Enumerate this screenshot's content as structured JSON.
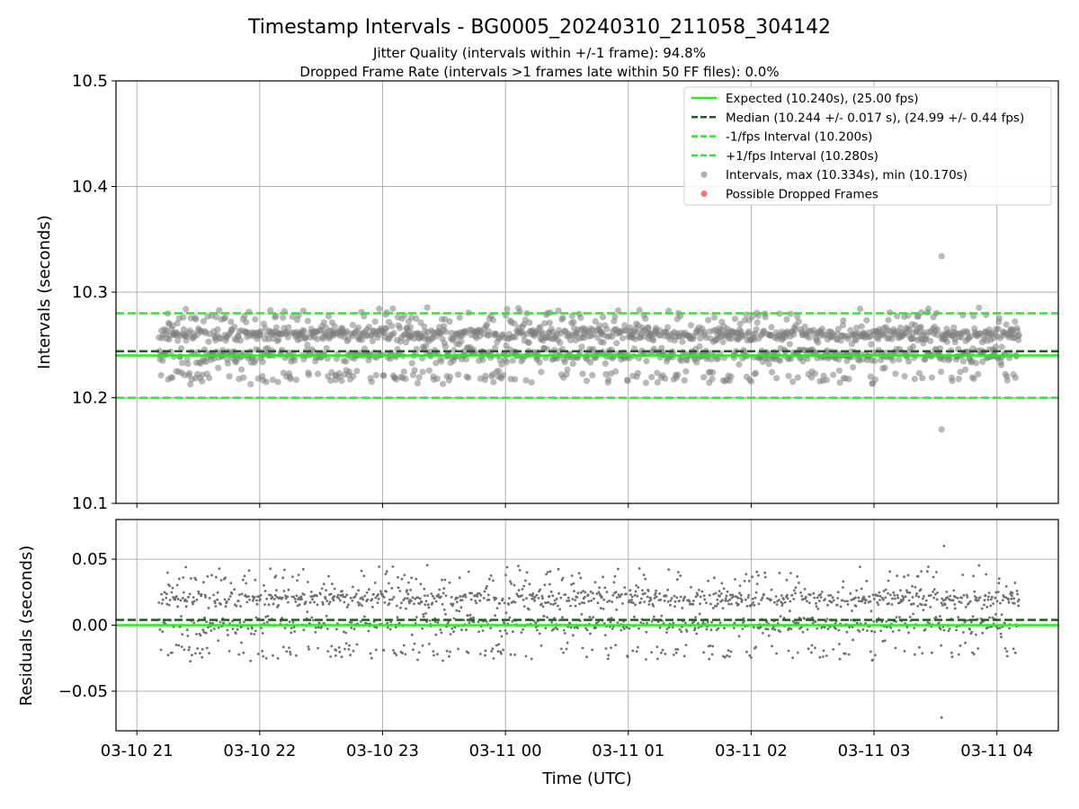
{
  "chart_data": [
    {
      "type": "scatter",
      "title": "Timestamp Intervals - BG0005_20240310_211058_304142",
      "subtitle_lines": [
        "Jitter Quality (intervals within +/-1 frame): 94.8%",
        "Dropped Frame Rate (intervals >1 frames late within 50 FF files): 0.0%"
      ],
      "ylabel": "Intervals (seconds)",
      "ylim": [
        10.1,
        10.5
      ],
      "yticks": [
        10.1,
        10.2,
        10.3,
        10.4,
        10.5
      ],
      "ytick_labels": [
        "10.1",
        "10.2",
        "10.3",
        "10.4",
        "10.5"
      ],
      "grid": true,
      "legend_position": "top-right",
      "legend": [
        {
          "label": "Expected (10.240s), (25.00 fps)",
          "kind": "solid",
          "color": "#22ee22"
        },
        {
          "label": "Median (10.244 +/- 0.017 s), (24.99 +/- 0.44 fps)",
          "kind": "dash",
          "color": "#116611"
        },
        {
          "label": "-1/fps Interval (10.200s)",
          "kind": "dash",
          "color": "#22ee22"
        },
        {
          "label": "+1/fps Interval (10.280s)",
          "kind": "dash",
          "color": "#22ee22"
        },
        {
          "label": "Intervals, max (10.334s), min (10.170s)",
          "kind": "dot",
          "color": "#9a9a9a"
        },
        {
          "label": "Possible Dropped Frames",
          "kind": "dot",
          "color": "#ee5555"
        }
      ],
      "reference_lines": {
        "expected": 10.24,
        "median": 10.244,
        "minus_1fps": 10.2,
        "plus_1fps": 10.28
      },
      "points_summary": {
        "count_approx": 2460,
        "time_start_hours": 21.18,
        "time_end_hours": 28.18,
        "max": 10.334,
        "max_time_hours": 27.55,
        "min": 10.17,
        "min_time_hours": 27.55,
        "typical_low": 10.22,
        "typical_high": 10.28
      },
      "point_color": "#808080",
      "dropped_color": "#ee5555"
    },
    {
      "type": "scatter",
      "ylabel": "Residuals (seconds)",
      "xlabel": "Time (UTC)",
      "ylim": [
        -0.08,
        0.08
      ],
      "yticks": [
        -0.05,
        0.0,
        0.05
      ],
      "ytick_labels": [
        "−0.05",
        "0.00",
        "0.05"
      ],
      "xlim_hours": [
        20.83,
        28.5
      ],
      "xticks_hours": [
        21,
        22,
        23,
        24,
        25,
        26,
        27,
        28
      ],
      "xtick_labels": [
        "03-10 21",
        "03-10 22",
        "03-10 23",
        "03-11 00",
        "03-11 01",
        "03-11 02",
        "03-11 03",
        "03-11 04"
      ],
      "grid": true,
      "reference_lines": {
        "zero": 0.0,
        "median_offset": 0.004
      },
      "points_summary": {
        "max": 0.06,
        "min": -0.07
      }
    }
  ],
  "colors": {
    "expected": "#22ee22",
    "median": "#116611",
    "fps_bounds": "#22ee22",
    "grid": "#b0b0b0"
  }
}
